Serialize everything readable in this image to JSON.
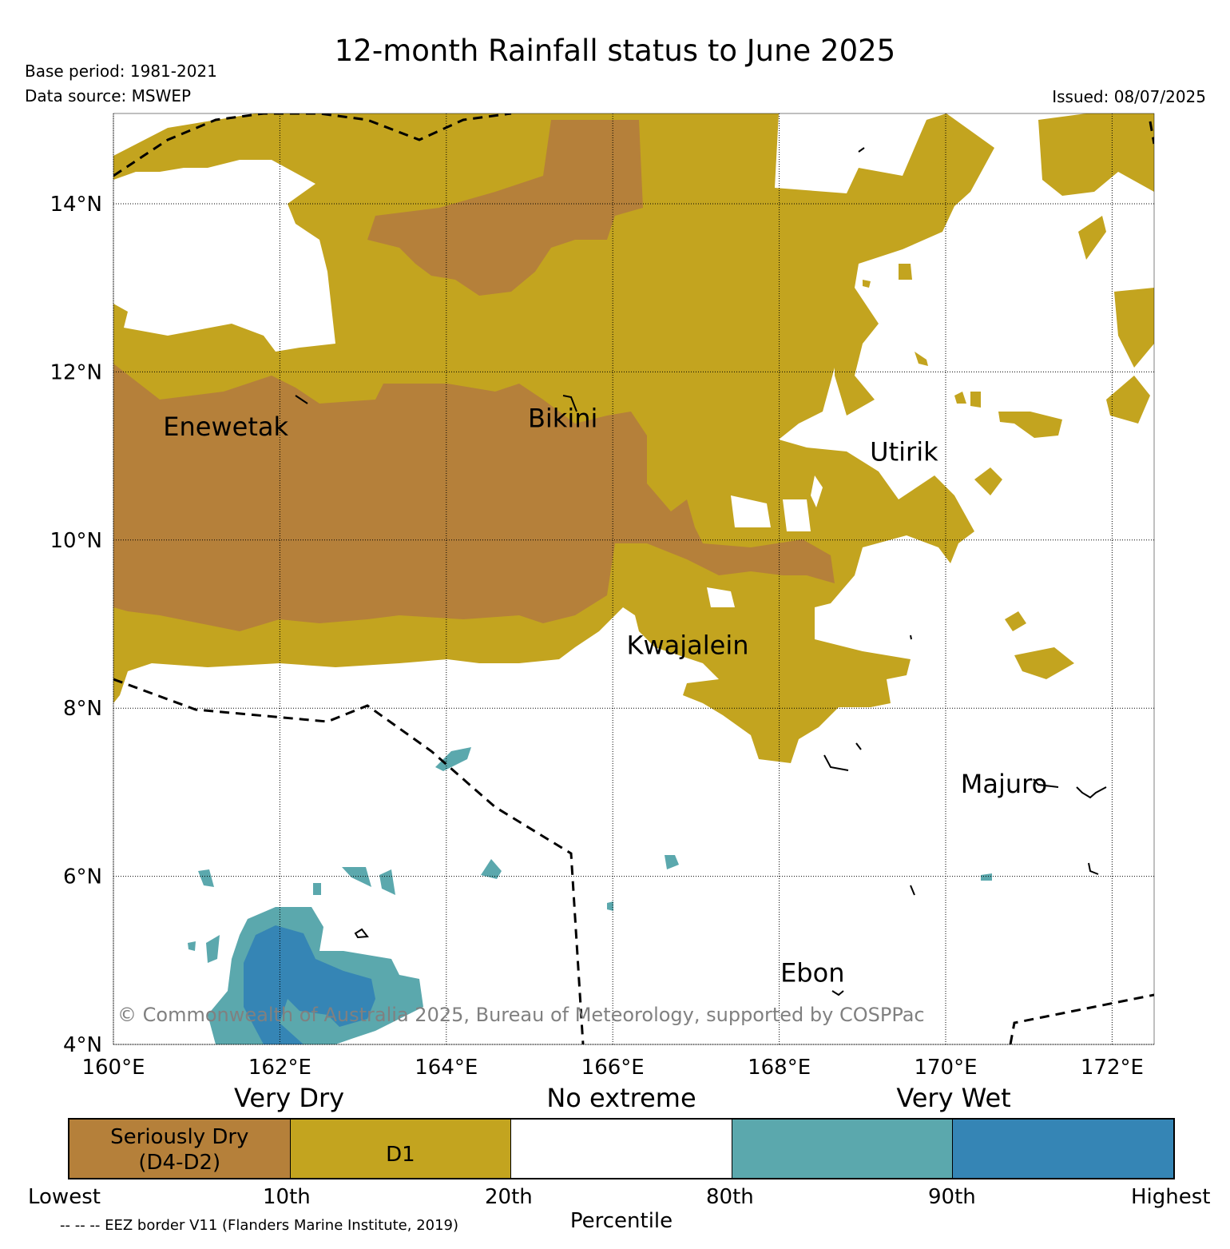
{
  "title": "12-month Rainfall status to June 2025",
  "base_period": "Base period: 1981-2021",
  "data_source": "Data source: MSWEP",
  "issued": "Issued: 08/07/2025",
  "copyright": "© Commonwealth of Australia 2025, Bureau of Meteorology, supported by COSPPac",
  "map": {
    "lon_labels": [
      "160°E",
      "162°E",
      "164°E",
      "166°E",
      "168°E",
      "170°E",
      "172°E"
    ],
    "lat_labels": [
      "4°N",
      "6°N",
      "8°N",
      "10°N",
      "12°N",
      "14°N"
    ],
    "places": [
      {
        "name": "Enewetak",
        "lon": 161.35,
        "lat": 11.35
      },
      {
        "name": "Bikini",
        "lon": 165.4,
        "lat": 11.45
      },
      {
        "name": "Utirik",
        "lon": 169.5,
        "lat": 11.05
      },
      {
        "name": "Kwajalein",
        "lon": 166.9,
        "lat": 8.75
      },
      {
        "name": "Majuro",
        "lon": 170.7,
        "lat": 7.1
      },
      {
        "name": "Ebon",
        "lon": 168.4,
        "lat": 4.85
      }
    ]
  },
  "legend": {
    "groups": [
      "Very Dry",
      "No extreme",
      "Very Wet"
    ],
    "categories": [
      {
        "label": "Seriously Dry\n(D4-D2)",
        "color": "#b5803a"
      },
      {
        "label": "D1",
        "color": "#c3a41f"
      },
      {
        "label": "",
        "color": "#ffffff"
      },
      {
        "label": "",
        "color": "#5ba8ad"
      },
      {
        "label": "",
        "color": "#3585b5"
      }
    ],
    "percentiles": [
      "Lowest",
      "10th",
      "20th",
      "80th",
      "90th",
      "Highest"
    ],
    "percentile_title": "Percentile",
    "eez_note": "-- -- -- EEZ border V11 (Flanders Marine Institute, 2019)"
  }
}
